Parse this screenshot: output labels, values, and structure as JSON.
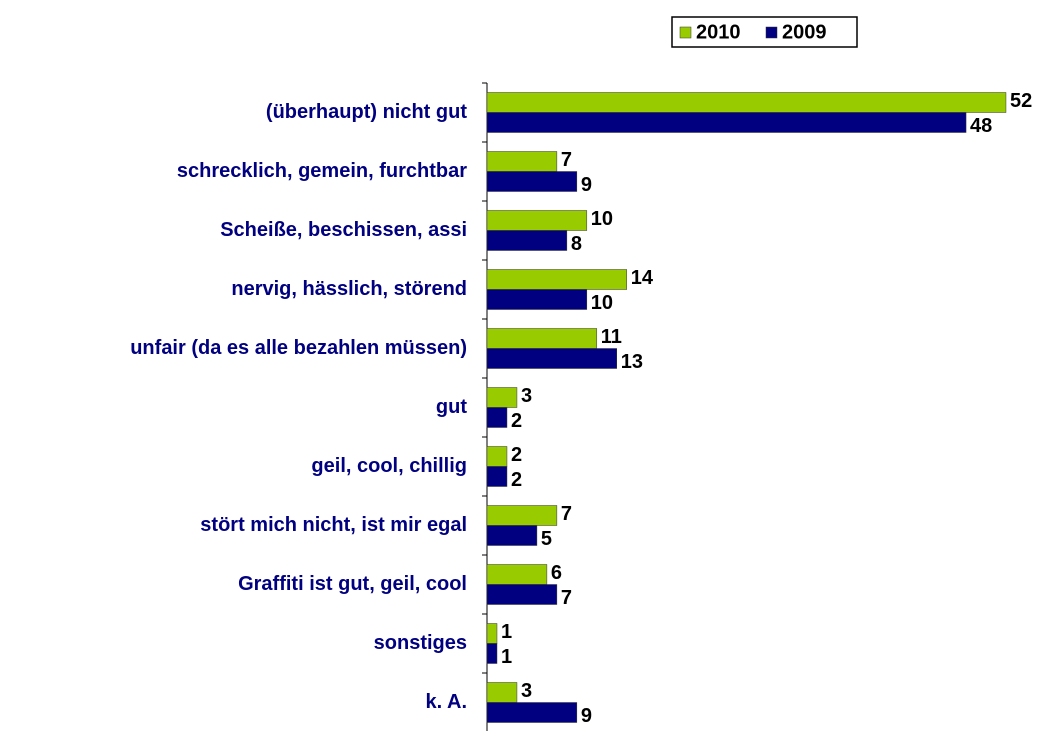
{
  "chart_data": {
    "type": "hbar",
    "categories": [
      "(überhaupt) nicht gut",
      "schrecklich, gemein, furchtbar",
      "Scheiße, beschissen, assi",
      "nervig, hässlich, störend",
      "unfair (da es alle bezahlen müssen)",
      "gut",
      "geil, cool, chillig",
      "stört mich nicht, ist mir egal",
      "Graffiti ist gut, geil, cool",
      "sonstiges",
      "k. A."
    ],
    "series": [
      {
        "name": "2010",
        "color": "#99cc00",
        "values": [
          52,
          7,
          10,
          14,
          11,
          3,
          2,
          7,
          6,
          1,
          3
        ]
      },
      {
        "name": "2009",
        "color": "#000080",
        "values": [
          48,
          9,
          8,
          10,
          13,
          2,
          2,
          5,
          7,
          1,
          9
        ]
      }
    ],
    "legend": "top-right"
  }
}
